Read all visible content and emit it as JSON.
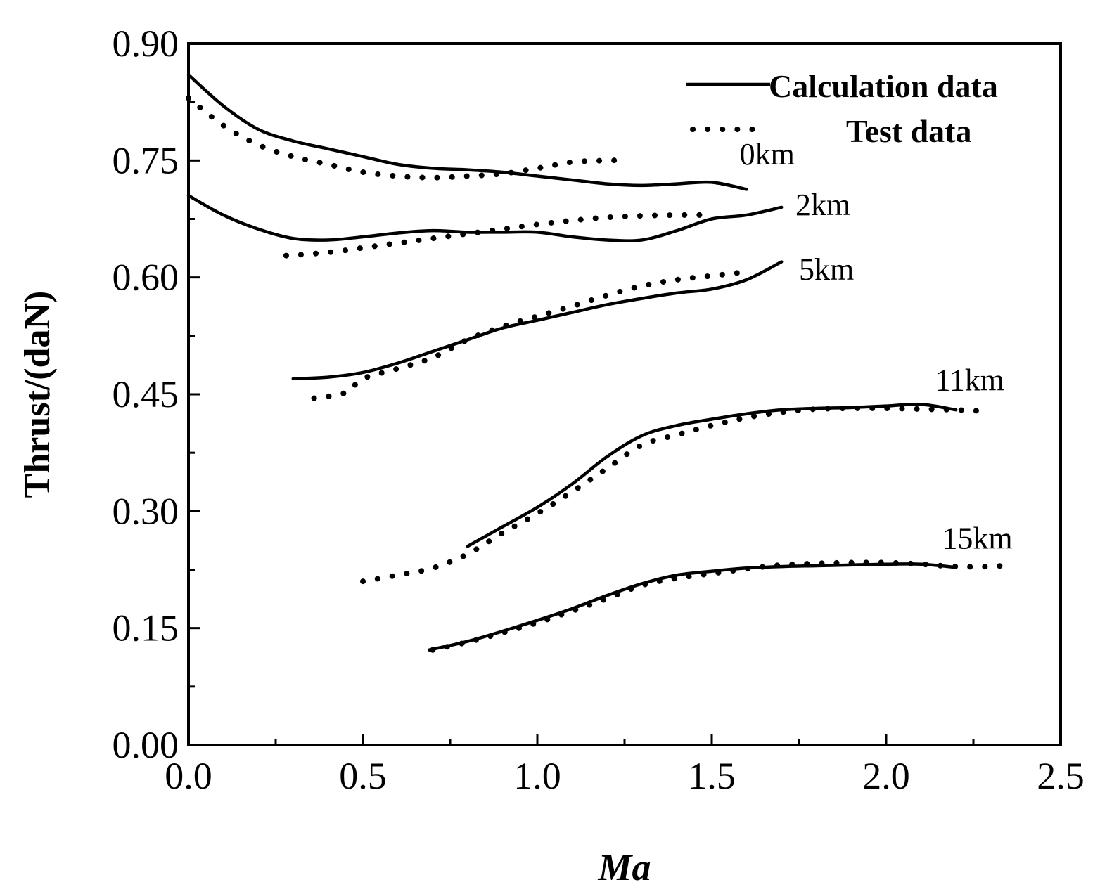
{
  "chart_data": {
    "type": "line",
    "title": "",
    "xlabel": "Ma",
    "ylabel": "Thrust/(daN)",
    "xlim": [
      0.0,
      2.5
    ],
    "ylim": [
      0.0,
      0.9
    ],
    "xticks": [
      "0.0",
      "0.5",
      "1.0",
      "1.5",
      "2.0",
      "2.5"
    ],
    "yticks": [
      "0.00",
      "0.15",
      "0.30",
      "0.45",
      "0.60",
      "0.75",
      "0.90"
    ],
    "grid": false,
    "legend": {
      "position": "top-right",
      "entries": [
        {
          "label": "Calculation data",
          "style": "solid"
        },
        {
          "label": "Test data",
          "style": "dotted"
        }
      ]
    },
    "series": [
      {
        "name": "0km",
        "kind": "calculation",
        "x": [
          0.0,
          0.1,
          0.2,
          0.3,
          0.4,
          0.5,
          0.6,
          0.7,
          0.8,
          0.9,
          1.0,
          1.1,
          1.2,
          1.3,
          1.4,
          1.5,
          1.6
        ],
        "y": [
          0.86,
          0.82,
          0.79,
          0.775,
          0.765,
          0.755,
          0.745,
          0.74,
          0.738,
          0.735,
          0.73,
          0.725,
          0.72,
          0.718,
          0.72,
          0.722,
          0.713
        ]
      },
      {
        "name": "0km",
        "kind": "test",
        "x": [
          0.0,
          0.1,
          0.2,
          0.3,
          0.4,
          0.5,
          0.6,
          0.7,
          0.8,
          0.9,
          1.0,
          1.1,
          1.2,
          1.24
        ],
        "y": [
          0.83,
          0.795,
          0.77,
          0.755,
          0.745,
          0.735,
          0.73,
          0.728,
          0.73,
          0.733,
          0.74,
          0.748,
          0.75,
          0.75
        ]
      },
      {
        "name": "2km",
        "kind": "calculation",
        "x": [
          0.0,
          0.1,
          0.2,
          0.3,
          0.4,
          0.5,
          0.6,
          0.7,
          0.8,
          0.9,
          1.0,
          1.1,
          1.2,
          1.3,
          1.4,
          1.5,
          1.6,
          1.7
        ],
        "y": [
          0.705,
          0.68,
          0.662,
          0.65,
          0.648,
          0.652,
          0.657,
          0.66,
          0.658,
          0.658,
          0.658,
          0.652,
          0.648,
          0.648,
          0.66,
          0.675,
          0.68,
          0.69
        ]
      },
      {
        "name": "2km",
        "kind": "test",
        "x": [
          0.28,
          0.4,
          0.5,
          0.6,
          0.7,
          0.8,
          0.9,
          1.0,
          1.1,
          1.2,
          1.3,
          1.4,
          1.5
        ],
        "y": [
          0.628,
          0.632,
          0.638,
          0.644,
          0.65,
          0.656,
          0.662,
          0.668,
          0.673,
          0.677,
          0.679,
          0.68,
          0.68
        ]
      },
      {
        "name": "5km",
        "kind": "calculation",
        "x": [
          0.3,
          0.4,
          0.5,
          0.6,
          0.7,
          0.8,
          0.9,
          1.0,
          1.1,
          1.2,
          1.3,
          1.4,
          1.5,
          1.6,
          1.7
        ],
        "y": [
          0.47,
          0.472,
          0.478,
          0.49,
          0.505,
          0.52,
          0.535,
          0.545,
          0.555,
          0.565,
          0.573,
          0.58,
          0.585,
          0.597,
          0.62
        ]
      },
      {
        "name": "5km",
        "kind": "test",
        "x": [
          0.36,
          0.45,
          0.5,
          0.6,
          0.7,
          0.8,
          0.9,
          1.0,
          1.1,
          1.2,
          1.3,
          1.4,
          1.5,
          1.6
        ],
        "y": [
          0.445,
          0.452,
          0.47,
          0.483,
          0.497,
          0.52,
          0.537,
          0.55,
          0.563,
          0.577,
          0.589,
          0.597,
          0.602,
          0.607
        ]
      },
      {
        "name": "11km",
        "kind": "calculation",
        "x": [
          0.8,
          0.9,
          1.0,
          1.1,
          1.2,
          1.3,
          1.4,
          1.5,
          1.6,
          1.7,
          1.8,
          1.9,
          2.0,
          2.1,
          2.2
        ],
        "y": [
          0.255,
          0.28,
          0.305,
          0.335,
          0.37,
          0.397,
          0.41,
          0.418,
          0.425,
          0.43,
          0.432,
          0.433,
          0.435,
          0.437,
          0.43
        ]
      },
      {
        "name": "11km",
        "kind": "test",
        "x": [
          0.5,
          0.6,
          0.7,
          0.8,
          0.9,
          1.0,
          1.1,
          1.2,
          1.3,
          1.4,
          1.5,
          1.6,
          1.7,
          1.8,
          1.9,
          2.0,
          2.1,
          2.2,
          2.3
        ],
        "y": [
          0.21,
          0.218,
          0.227,
          0.245,
          0.272,
          0.297,
          0.325,
          0.355,
          0.385,
          0.398,
          0.41,
          0.42,
          0.427,
          0.431,
          0.432,
          0.432,
          0.431,
          0.43,
          0.428
        ]
      },
      {
        "name": "15km",
        "kind": "calculation",
        "x": [
          0.69,
          0.8,
          0.9,
          1.0,
          1.1,
          1.2,
          1.3,
          1.4,
          1.5,
          1.6,
          1.7,
          1.8,
          1.9,
          2.0,
          2.1,
          2.2
        ],
        "y": [
          0.122,
          0.133,
          0.146,
          0.16,
          0.175,
          0.192,
          0.207,
          0.218,
          0.223,
          0.227,
          0.229,
          0.23,
          0.231,
          0.232,
          0.232,
          0.228
        ]
      },
      {
        "name": "15km",
        "kind": "test",
        "x": [
          0.7,
          0.8,
          0.9,
          1.0,
          1.1,
          1.2,
          1.3,
          1.4,
          1.5,
          1.6,
          1.7,
          1.8,
          1.9,
          2.0,
          2.1,
          2.2,
          2.3,
          2.35
        ],
        "y": [
          0.122,
          0.132,
          0.144,
          0.157,
          0.172,
          0.188,
          0.205,
          0.214,
          0.22,
          0.226,
          0.231,
          0.233,
          0.234,
          0.234,
          0.232,
          0.229,
          0.229,
          0.231
        ]
      }
    ],
    "annotations": [
      {
        "text": "0km",
        "x": 1.58,
        "y": 0.745
      },
      {
        "text": "2km",
        "x": 1.74,
        "y": 0.68
      },
      {
        "text": "5km",
        "x": 1.75,
        "y": 0.597
      },
      {
        "text": "11km",
        "x": 2.14,
        "y": 0.455
      },
      {
        "text": "15km",
        "x": 2.16,
        "y": 0.252
      }
    ]
  }
}
